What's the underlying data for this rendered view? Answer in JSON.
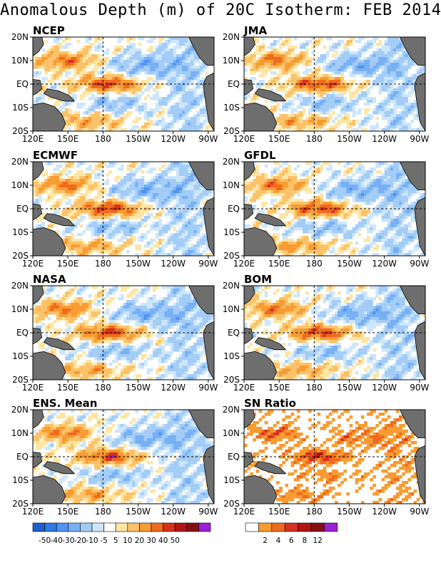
{
  "title": "Anomalous Depth (m) of 20C Isotherm: FEB 2014",
  "lon_labels": [
    "120E",
    "150E",
    "180",
    "150W",
    "120W",
    "90W"
  ],
  "lat_labels": [
    "20N",
    "10N",
    "EQ",
    "10S",
    "20S"
  ],
  "panels": [
    {
      "name": "NCEP"
    },
    {
      "name": "JMA"
    },
    {
      "name": "ECMWF"
    },
    {
      "name": "GFDL"
    },
    {
      "name": "NASA"
    },
    {
      "name": "BOM"
    },
    {
      "name": "ENS. Mean"
    },
    {
      "name": "SN Ratio"
    }
  ],
  "anomaly_colorbar": {
    "colors": [
      "#1f5fd0",
      "#2f78e6",
      "#4f94f0",
      "#77b0f4",
      "#a3cdf7",
      "#cde6fa",
      "#ffffff",
      "#fde6a3",
      "#fbc26a",
      "#f79c32",
      "#ef6a1e",
      "#d7301f",
      "#b01414",
      "#861010",
      "#9b1fd6"
    ],
    "labels": [
      "-50",
      "-40",
      "-30",
      "-20",
      "-10",
      "-5",
      "5",
      "10",
      "20",
      "30",
      "40",
      "50"
    ]
  },
  "sn_colorbar": {
    "colors": [
      "#ffffff",
      "#f79c32",
      "#ef6a1e",
      "#d7301f",
      "#b01414",
      "#861010",
      "#9b1fd6"
    ],
    "labels": [
      "2",
      "4",
      "6",
      "8",
      "12"
    ]
  },
  "colors": {
    "land": "#6e6e6e",
    "frame": "#000000"
  }
}
